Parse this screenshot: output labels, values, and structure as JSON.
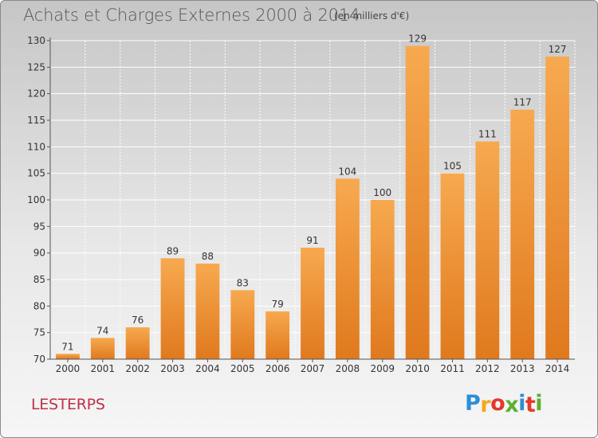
{
  "header": {
    "title": "Achats et Charges Externes 2000 à 2014",
    "subtitle": "(en milliers d'€)"
  },
  "footer": {
    "commune": "LESTERPS",
    "logo": {
      "letters": [
        "P",
        "r",
        "o",
        "x",
        "i",
        "t",
        "i"
      ],
      "colors": [
        "#2c8fd6",
        "#f4a81d",
        "#e5382b",
        "#5bb030",
        "#2c8fd6",
        "#e5382b",
        "#5bb030"
      ]
    }
  },
  "colors": {
    "bar_light": "#f7a94f",
    "bar_dark": "#e0791e",
    "axis": "#555555",
    "grid": "#ffffff"
  },
  "chart_data": {
    "type": "bar",
    "categories": [
      "2000",
      "2001",
      "2002",
      "2003",
      "2004",
      "2005",
      "2006",
      "2007",
      "2008",
      "2009",
      "2010",
      "2011",
      "2012",
      "2013",
      "2014"
    ],
    "values": [
      71,
      74,
      76,
      89,
      88,
      83,
      79,
      91,
      104,
      100,
      129,
      105,
      111,
      117,
      127
    ],
    "title": "Achats et Charges Externes 2000 à 2014",
    "ylabel": "",
    "xlabel": "",
    "ylim": [
      70,
      130
    ],
    "yticks": [
      70,
      75,
      80,
      85,
      90,
      95,
      100,
      105,
      110,
      115,
      120,
      125,
      130
    ],
    "grid": true
  }
}
